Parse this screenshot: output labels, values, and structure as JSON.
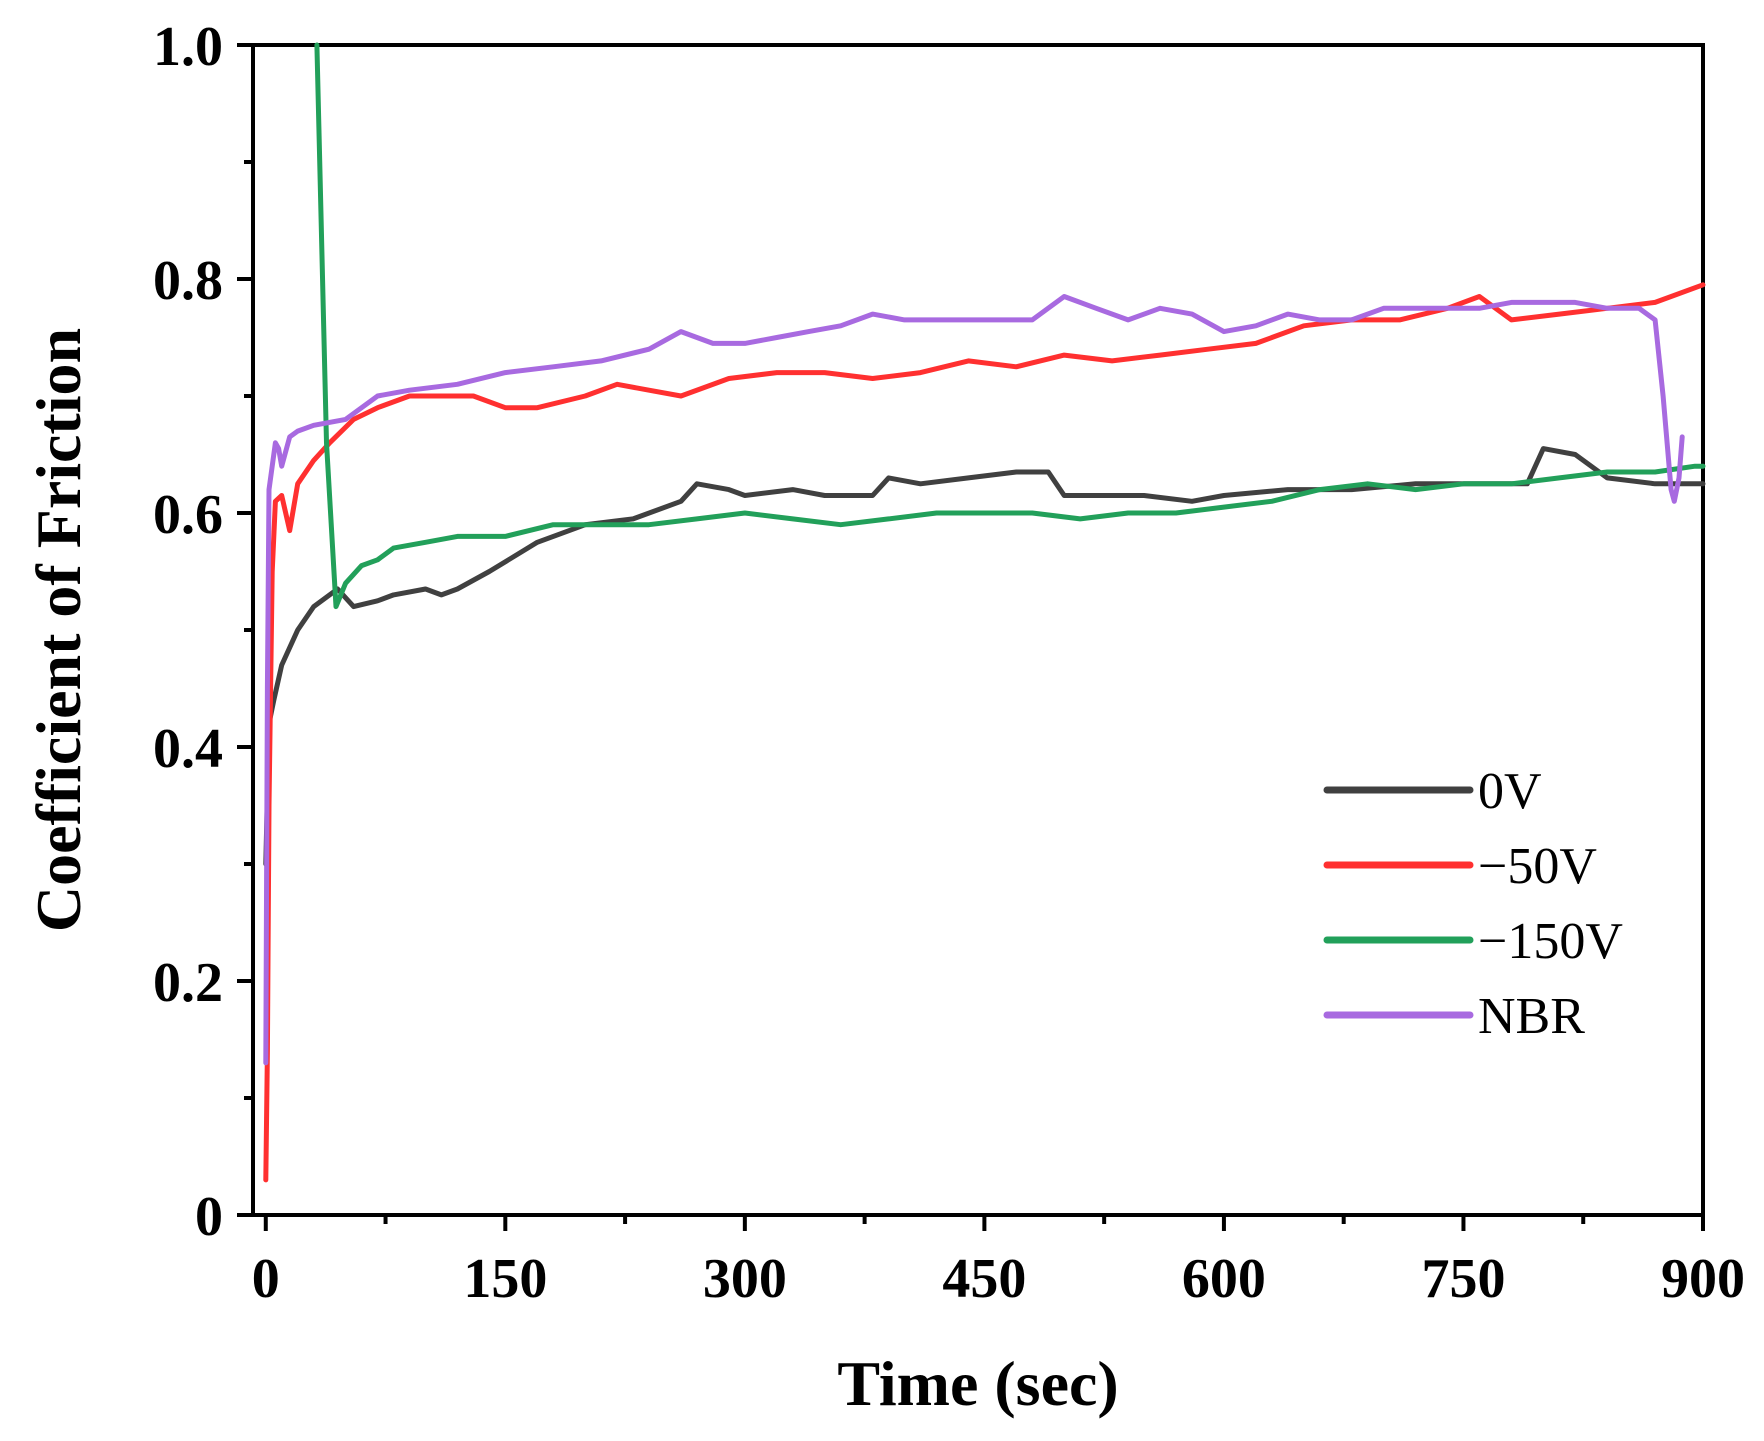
{
  "chart_data": {
    "type": "line",
    "title": "",
    "xlabel": "Time (sec)",
    "ylabel": "Coefficient of Friction",
    "xlim": [
      -8,
      900
    ],
    "ylim": [
      0,
      1.0
    ],
    "x_ticks": [
      0,
      150,
      300,
      450,
      600,
      750,
      900
    ],
    "x_tick_labels": [
      "0",
      "150",
      "300",
      "450",
      "600",
      "750",
      "900"
    ],
    "y_ticks": [
      0,
      0.2,
      0.4,
      0.6,
      0.8,
      1.0
    ],
    "y_tick_labels": [
      "0",
      "0.2",
      "0.4",
      "0.6",
      "0.8",
      "1.0"
    ],
    "grid": false,
    "legend_position": "lower-right",
    "series": [
      {
        "name": "0V",
        "color": "#404040",
        "x": [
          0,
          2,
          5,
          10,
          20,
          30,
          45,
          55,
          70,
          80,
          100,
          110,
          120,
          140,
          170,
          200,
          230,
          260,
          270,
          290,
          300,
          330,
          350,
          380,
          390,
          410,
          440,
          470,
          490,
          500,
          530,
          550,
          580,
          600,
          640,
          680,
          720,
          760,
          790,
          800,
          820,
          840,
          870,
          900
        ],
        "y": [
          0.3,
          0.42,
          0.44,
          0.47,
          0.5,
          0.52,
          0.535,
          0.52,
          0.525,
          0.53,
          0.535,
          0.53,
          0.535,
          0.55,
          0.575,
          0.59,
          0.595,
          0.61,
          0.625,
          0.62,
          0.615,
          0.62,
          0.615,
          0.615,
          0.63,
          0.625,
          0.63,
          0.635,
          0.635,
          0.615,
          0.615,
          0.615,
          0.61,
          0.615,
          0.62,
          0.62,
          0.625,
          0.625,
          0.625,
          0.655,
          0.65,
          0.63,
          0.625,
          0.625
        ]
      },
      {
        "name": "−50V",
        "color": "#ff3030",
        "x": [
          0,
          1,
          2,
          4,
          6,
          10,
          15,
          20,
          30,
          40,
          55,
          70,
          90,
          110,
          130,
          150,
          170,
          200,
          220,
          240,
          260,
          290,
          320,
          350,
          380,
          410,
          440,
          470,
          500,
          530,
          560,
          590,
          620,
          650,
          680,
          710,
          740,
          760,
          780,
          810,
          840,
          870,
          900
        ],
        "y": [
          0.03,
          0.14,
          0.35,
          0.55,
          0.61,
          0.615,
          0.585,
          0.625,
          0.645,
          0.66,
          0.68,
          0.69,
          0.7,
          0.7,
          0.7,
          0.69,
          0.69,
          0.7,
          0.71,
          0.705,
          0.7,
          0.715,
          0.72,
          0.72,
          0.715,
          0.72,
          0.73,
          0.725,
          0.735,
          0.73,
          0.735,
          0.74,
          0.745,
          0.76,
          0.765,
          0.765,
          0.775,
          0.785,
          0.765,
          0.77,
          0.775,
          0.78,
          0.795
        ]
      },
      {
        "name": "−150V",
        "color": "#22a05a",
        "x": [
          32,
          38,
          44,
          50,
          60,
          70,
          80,
          100,
          120,
          150,
          180,
          210,
          240,
          270,
          300,
          330,
          360,
          390,
          420,
          450,
          480,
          510,
          540,
          570,
          600,
          630,
          660,
          690,
          720,
          750,
          780,
          810,
          840,
          870,
          895,
          900
        ],
        "y": [
          1.0,
          0.66,
          0.52,
          0.54,
          0.555,
          0.56,
          0.57,
          0.575,
          0.58,
          0.58,
          0.59,
          0.59,
          0.59,
          0.595,
          0.6,
          0.595,
          0.59,
          0.595,
          0.6,
          0.6,
          0.6,
          0.595,
          0.6,
          0.6,
          0.605,
          0.61,
          0.62,
          0.625,
          0.62,
          0.625,
          0.625,
          0.63,
          0.635,
          0.635,
          0.64,
          0.64
        ]
      },
      {
        "name": "NBR",
        "color": "#a86ae0",
        "x": [
          0,
          1,
          2,
          4,
          6,
          8,
          10,
          15,
          20,
          30,
          50,
          70,
          90,
          120,
          150,
          180,
          210,
          240,
          260,
          280,
          300,
          320,
          340,
          360,
          380,
          400,
          420,
          440,
          460,
          480,
          500,
          520,
          540,
          560,
          580,
          600,
          620,
          640,
          660,
          680,
          700,
          720,
          740,
          760,
          780,
          800,
          820,
          840,
          860,
          870,
          875,
          880,
          882,
          885,
          887
        ],
        "y": [
          0.13,
          0.45,
          0.62,
          0.64,
          0.66,
          0.655,
          0.64,
          0.665,
          0.67,
          0.675,
          0.68,
          0.7,
          0.705,
          0.71,
          0.72,
          0.725,
          0.73,
          0.74,
          0.755,
          0.745,
          0.745,
          0.75,
          0.755,
          0.76,
          0.77,
          0.765,
          0.765,
          0.765,
          0.765,
          0.765,
          0.785,
          0.775,
          0.765,
          0.775,
          0.77,
          0.755,
          0.76,
          0.77,
          0.765,
          0.765,
          0.775,
          0.775,
          0.775,
          0.775,
          0.78,
          0.78,
          0.78,
          0.775,
          0.775,
          0.765,
          0.7,
          0.62,
          0.61,
          0.63,
          0.665
        ]
      }
    ]
  }
}
